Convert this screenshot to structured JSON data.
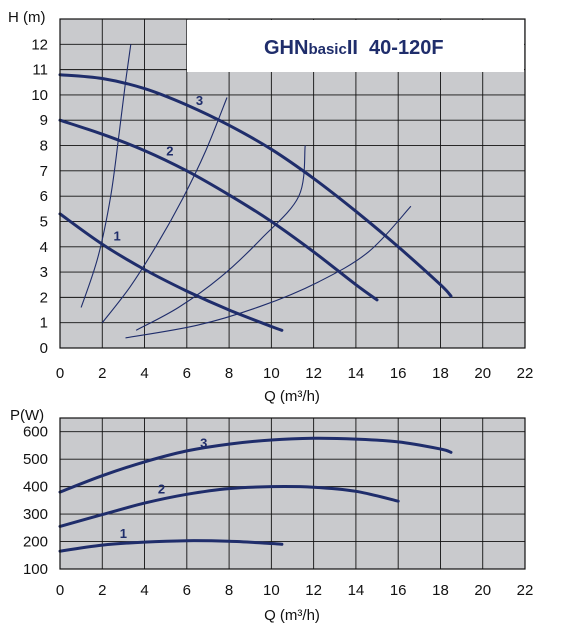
{
  "colors": {
    "curve": "#1f2d6b",
    "grid": "#111111",
    "plot_bg": "#c9cacd",
    "title_box": "#ffffff"
  },
  "chart_data": [
    {
      "type": "line",
      "title": "GHNbasicII 40-120F",
      "title_parts": [
        "GHN",
        "basic",
        "II  40-120F"
      ],
      "xlabel": "Q (m³/h)",
      "ylabel": "H (m)",
      "xlim": [
        0,
        22
      ],
      "ylim": [
        0,
        13
      ],
      "x_ticks": [
        "0",
        "2",
        "4",
        "6",
        "8",
        "10",
        "12",
        "14",
        "16",
        "18",
        "20",
        "22"
      ],
      "y_ticks": [
        "0",
        "1",
        "2",
        "3",
        "4",
        "5",
        "6",
        "7",
        "8",
        "9",
        "10",
        "11",
        "12"
      ],
      "grid": true,
      "series": [
        {
          "name": "1",
          "points": [
            [
              0,
              5.3
            ],
            [
              2,
              4.1
            ],
            [
              4,
              3.1
            ],
            [
              6,
              2.25
            ],
            [
              8,
              1.5
            ],
            [
              10,
              0.85
            ],
            [
              10.5,
              0.7
            ]
          ]
        },
        {
          "name": "2",
          "points": [
            [
              0,
              9.0
            ],
            [
              2,
              8.45
            ],
            [
              4,
              7.8
            ],
            [
              6,
              7.0
            ],
            [
              8,
              6.05
            ],
            [
              10,
              5.0
            ],
            [
              12,
              3.8
            ],
            [
              14,
              2.5
            ],
            [
              15,
              1.9
            ]
          ]
        },
        {
          "name": "3",
          "points": [
            [
              0,
              10.8
            ],
            [
              2,
              10.65
            ],
            [
              4,
              10.25
            ],
            [
              6,
              9.6
            ],
            [
              8,
              8.8
            ],
            [
              10,
              7.85
            ],
            [
              12,
              6.7
            ],
            [
              14,
              5.4
            ],
            [
              16,
              4.0
            ],
            [
              18,
              2.5
            ],
            [
              18.5,
              2.05
            ]
          ]
        }
      ],
      "system_curves": [
        [
          [
            1.0,
            1.6
          ],
          [
            1.8,
            3.6
          ],
          [
            2.4,
            6.0
          ],
          [
            2.8,
            8.5
          ],
          [
            3.1,
            10.5
          ],
          [
            3.35,
            12.0
          ]
        ],
        [
          [
            2.0,
            1.0
          ],
          [
            3.3,
            2.4
          ],
          [
            4.6,
            4.1
          ],
          [
            5.8,
            5.9
          ],
          [
            6.9,
            7.8
          ],
          [
            7.9,
            9.9
          ]
        ],
        [
          [
            3.6,
            0.7
          ],
          [
            5.6,
            1.6
          ],
          [
            7.6,
            2.8
          ],
          [
            9.5,
            4.3
          ],
          [
            11.3,
            6.0
          ],
          [
            11.6,
            8.0
          ]
        ],
        [
          [
            3.1,
            0.4
          ],
          [
            6.5,
            0.9
          ],
          [
            9.5,
            1.65
          ],
          [
            12.2,
            2.6
          ],
          [
            14.6,
            3.8
          ],
          [
            16.6,
            5.6
          ]
        ]
      ]
    },
    {
      "type": "line",
      "title": "",
      "xlabel": "Q (m³/h)",
      "ylabel": "P(W)",
      "xlim": [
        0,
        22
      ],
      "ylim": [
        100,
        650
      ],
      "x_ticks": [
        "0",
        "2",
        "4",
        "6",
        "8",
        "10",
        "12",
        "14",
        "16",
        "18",
        "20",
        "22"
      ],
      "y_ticks": [
        "100",
        "200",
        "300",
        "400",
        "500",
        "600"
      ],
      "grid": true,
      "series": [
        {
          "name": "1",
          "points": [
            [
              0,
              165
            ],
            [
              2,
              187
            ],
            [
              4,
              198
            ],
            [
              6,
              203
            ],
            [
              8,
              201
            ],
            [
              10,
              193
            ],
            [
              10.5,
              190
            ]
          ]
        },
        {
          "name": "2",
          "points": [
            [
              0,
              255
            ],
            [
              2,
              298
            ],
            [
              4,
              340
            ],
            [
              6,
              372
            ],
            [
              8,
              393
            ],
            [
              10,
              400
            ],
            [
              12,
              398
            ],
            [
              14,
              383
            ],
            [
              16,
              347
            ]
          ]
        },
        {
          "name": "3",
          "points": [
            [
              0,
              380
            ],
            [
              2,
              440
            ],
            [
              4,
              490
            ],
            [
              6,
              530
            ],
            [
              8,
              555
            ],
            [
              10,
              570
            ],
            [
              12,
              576
            ],
            [
              14,
              573
            ],
            [
              16,
              563
            ],
            [
              18,
              537
            ],
            [
              18.5,
              525
            ]
          ]
        }
      ]
    }
  ]
}
